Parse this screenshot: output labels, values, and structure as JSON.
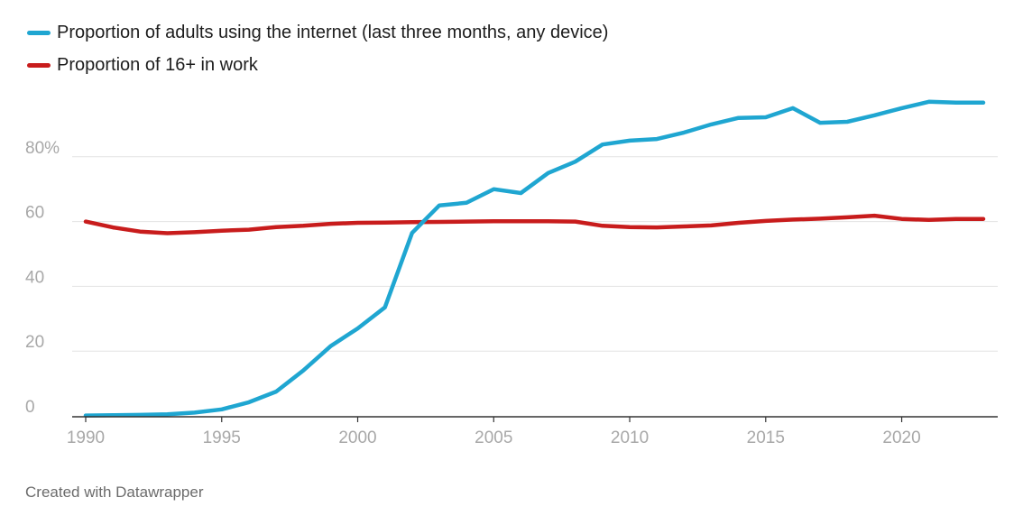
{
  "colors": {
    "internet": "#1fa6d1",
    "work": "#c81c1c",
    "grid": "#e3e3e3",
    "axis": "#333333",
    "tick_text": "#a8a8a8"
  },
  "legend": [
    {
      "label": "Proportion of adults using the internet (last three months, any device)",
      "color": "#1fa6d1"
    },
    {
      "label": "Proportion of 16+ in work",
      "color": "#c81c1c"
    }
  ],
  "footer": "Created with Datawrapper",
  "chart_data": {
    "type": "line",
    "title": "",
    "xlabel": "",
    "ylabel": "",
    "xlim": [
      1990,
      2023
    ],
    "ylim": [
      0,
      100
    ],
    "grid": true,
    "legend_position": "top-left",
    "x_ticks": [
      1990,
      1995,
      2000,
      2005,
      2010,
      2015,
      2020
    ],
    "y_ticks": [
      {
        "value": 0,
        "label": "0"
      },
      {
        "value": 20,
        "label": "20"
      },
      {
        "value": 40,
        "label": "40"
      },
      {
        "value": 60,
        "label": "60"
      },
      {
        "value": 80,
        "label": "80%"
      }
    ],
    "x": [
      1990,
      1991,
      1992,
      1993,
      1994,
      1995,
      1996,
      1997,
      1998,
      1999,
      2000,
      2001,
      2002,
      2003,
      2004,
      2005,
      2006,
      2007,
      2008,
      2009,
      2010,
      2011,
      2012,
      2013,
      2014,
      2015,
      2016,
      2017,
      2018,
      2019,
      2020,
      2021,
      2022,
      2023
    ],
    "series": [
      {
        "name": "Proportion of adults using the internet (last three months, any device)",
        "color": "#1fa6d1",
        "values": [
          0.1,
          0.2,
          0.3,
          0.5,
          1,
          2,
          4.2,
          7.5,
          14,
          21.5,
          27,
          33.5,
          56.5,
          65,
          65.8,
          70,
          68.8,
          75,
          78.5,
          83.8,
          85,
          85.5,
          87.5,
          90,
          92,
          92.2,
          95,
          90.5,
          90.8,
          92.8,
          95,
          97,
          96.7,
          96.7
        ]
      },
      {
        "name": "Proportion of 16+ in work",
        "color": "#c81c1c",
        "values": [
          60,
          58.2,
          56.9,
          56.4,
          56.7,
          57.2,
          57.5,
          58.3,
          58.7,
          59.3,
          59.6,
          59.7,
          59.8,
          59.9,
          60,
          60.1,
          60.1,
          60.1,
          60,
          58.7,
          58.3,
          58.2,
          58.5,
          58.8,
          59.6,
          60.2,
          60.6,
          60.9,
          61.3,
          61.8,
          60.8,
          60.5,
          60.8,
          60.8
        ]
      }
    ]
  }
}
